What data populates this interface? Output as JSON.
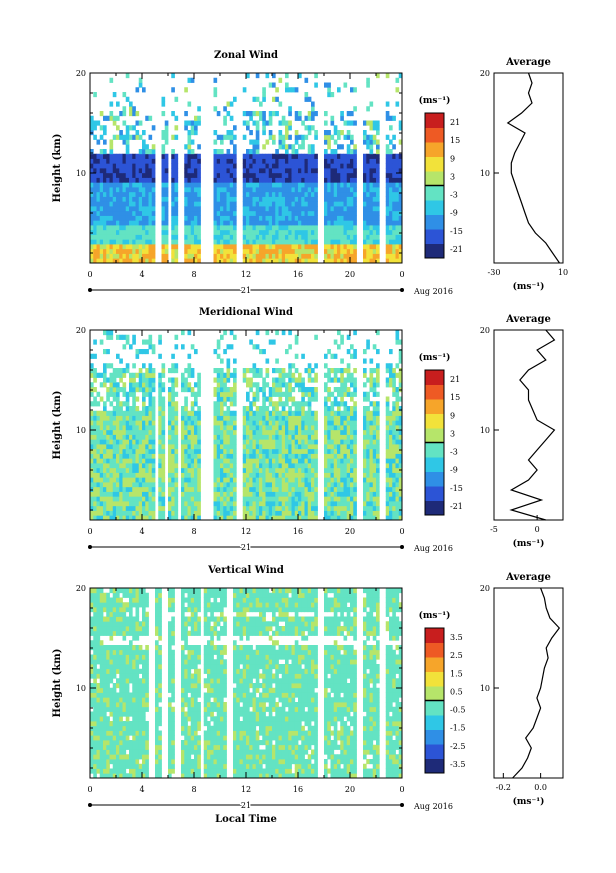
{
  "panels": [
    {
      "key": "zonal",
      "title": "Zonal Wind",
      "ylabel": "Height (km)",
      "xticks": [
        "0",
        "4",
        "8",
        "12",
        "16",
        "20",
        "0"
      ],
      "date_day": "21",
      "date_month": "Aug 2016",
      "colorbar_unit": "(ms⁻¹)",
      "colorbar_ticks": [
        "21",
        "15",
        "9",
        "3",
        "-3",
        "-9",
        "-15",
        "-21"
      ],
      "avg_title": "Average",
      "avg_xticks": [
        "-30",
        "10"
      ],
      "avg_unit": "(ms⁻¹)"
    },
    {
      "key": "meridional",
      "title": "Meridional Wind",
      "ylabel": "Height (km)",
      "xticks": [
        "0",
        "4",
        "8",
        "12",
        "16",
        "20",
        "0"
      ],
      "date_day": "21",
      "date_month": "Aug 2016",
      "colorbar_unit": "(ms⁻¹)",
      "colorbar_ticks": [
        "21",
        "15",
        "9",
        "3",
        "-3",
        "-9",
        "-15",
        "-21"
      ],
      "avg_title": "Average",
      "avg_xticks": [
        "-5",
        "0"
      ],
      "avg_unit": "(ms⁻¹)"
    },
    {
      "key": "vertical",
      "title": "Vertical Wind",
      "ylabel": "Height (km)",
      "xticks": [
        "0",
        "4",
        "8",
        "12",
        "16",
        "20",
        "0"
      ],
      "date_day": "21",
      "date_month": "Aug 2016",
      "colorbar_unit": "(ms⁻¹)",
      "colorbar_ticks": [
        "3.5",
        "2.5",
        "1.5",
        "0.5",
        "-0.5",
        "-1.5",
        "-2.5",
        "-3.5"
      ],
      "avg_title": "Average",
      "avg_xticks": [
        "-0.2",
        "0.0"
      ],
      "avg_unit": "(ms⁻¹)"
    }
  ],
  "xlabel": "Local Time",
  "colors": {
    "jet": [
      "#1e2a78",
      "#2c54d6",
      "#2f8fe6",
      "#2fc7e6",
      "#63e3c3",
      "#b6e56a",
      "#f2e23a",
      "#f6a52a",
      "#ee5a24",
      "#c81e1e"
    ]
  },
  "chart_data": [
    {
      "type": "heatmap",
      "title": "Zonal Wind",
      "xlabel": "",
      "ylabel": "Height (km)",
      "xlim_hours": [
        0,
        24
      ],
      "ylim_km": [
        1,
        20
      ],
      "yticks": [
        10,
        20
      ],
      "colorbar": {
        "unit": "ms-1",
        "range": [
          -21,
          21
        ],
        "ticks": [
          21,
          15,
          9,
          3,
          -3,
          -9,
          -15,
          -21
        ]
      },
      "data_gaps_local_time": [
        [
          5.0,
          5.4
        ],
        [
          5.9,
          6.2
        ],
        [
          6.8,
          7.2
        ],
        [
          8.6,
          9.4
        ],
        [
          11.2,
          11.8
        ],
        [
          17.6,
          17.9
        ],
        [
          20.6,
          21.0
        ],
        [
          22.3,
          22.7
        ]
      ],
      "average_profile": {
        "xlim": [
          -30,
          10
        ],
        "xticks": [
          -30,
          10
        ],
        "height_km": [
          1,
          2,
          3,
          4,
          5,
          6,
          7,
          8,
          9,
          10,
          11,
          12,
          13,
          14,
          15,
          16,
          17,
          18,
          19,
          20
        ],
        "wind_ms": [
          8,
          4,
          0,
          -6,
          -10,
          -12,
          -14,
          -16,
          -18,
          -20,
          -20,
          -18,
          -15,
          -12,
          -22,
          -14,
          -8,
          -10,
          -8,
          -10
        ]
      }
    },
    {
      "type": "heatmap",
      "title": "Meridional Wind",
      "xlabel": "",
      "ylabel": "Height (km)",
      "xlim_hours": [
        0,
        24
      ],
      "ylim_km": [
        1,
        20
      ],
      "yticks": [
        10,
        20
      ],
      "colorbar": {
        "unit": "ms-1",
        "range": [
          -21,
          21
        ],
        "ticks": [
          21,
          15,
          9,
          3,
          -3,
          -9,
          -15,
          -21
        ]
      },
      "data_gaps_local_time": [
        [
          4.9,
          5.3
        ],
        [
          5.8,
          6.1
        ],
        [
          6.7,
          7.1
        ],
        [
          8.6,
          9.4
        ],
        [
          11.2,
          11.8
        ],
        [
          17.6,
          17.9
        ],
        [
          20.6,
          21.0
        ],
        [
          22.3,
          22.7
        ]
      ],
      "average_profile": {
        "xlim": [
          -5,
          3
        ],
        "xticks": [
          -5,
          0
        ],
        "height_km": [
          1,
          2,
          3,
          4,
          5,
          6,
          7,
          8,
          9,
          10,
          11,
          12,
          13,
          14,
          15,
          16,
          17,
          18,
          19,
          20
        ],
        "wind_ms": [
          1,
          -3,
          0.5,
          -3,
          -1,
          0,
          -1,
          0,
          1,
          2,
          0,
          -0.5,
          -1,
          -1,
          -2,
          -1,
          1,
          0,
          2,
          1
        ]
      }
    },
    {
      "type": "heatmap",
      "title": "Vertical Wind",
      "xlabel": "Local Time",
      "ylabel": "Height (km)",
      "xlim_hours": [
        0,
        24
      ],
      "ylim_km": [
        1,
        20
      ],
      "yticks": [
        10,
        20
      ],
      "colorbar": {
        "unit": "ms-1",
        "range": [
          -3.5,
          3.5
        ],
        "ticks": [
          3.5,
          2.5,
          1.5,
          0.5,
          -0.5,
          -1.5,
          -2.5,
          -3.5
        ]
      },
      "data_gaps_local_time": [
        [
          4.6,
          5.0
        ],
        [
          5.6,
          5.9
        ],
        [
          6.6,
          7.0
        ],
        [
          8.4,
          8.7
        ],
        [
          10.5,
          10.9
        ],
        [
          17.6,
          17.9
        ],
        [
          20.6,
          21.0
        ],
        [
          22.3,
          22.7
        ]
      ],
      "average_profile": {
        "xlim": [
          -0.25,
          0.12
        ],
        "xticks": [
          -0.2,
          0.0
        ],
        "height_km": [
          1,
          2,
          3,
          4,
          5,
          6,
          7,
          8,
          9,
          10,
          11,
          12,
          13,
          14,
          15,
          16,
          17,
          18,
          19,
          20
        ],
        "wind_ms": [
          -0.15,
          -0.1,
          -0.07,
          -0.05,
          -0.08,
          -0.04,
          -0.02,
          0.0,
          -0.02,
          0.0,
          0.01,
          0.02,
          0.04,
          0.03,
          0.06,
          0.1,
          0.05,
          0.03,
          0.02,
          0.0
        ]
      }
    }
  ]
}
